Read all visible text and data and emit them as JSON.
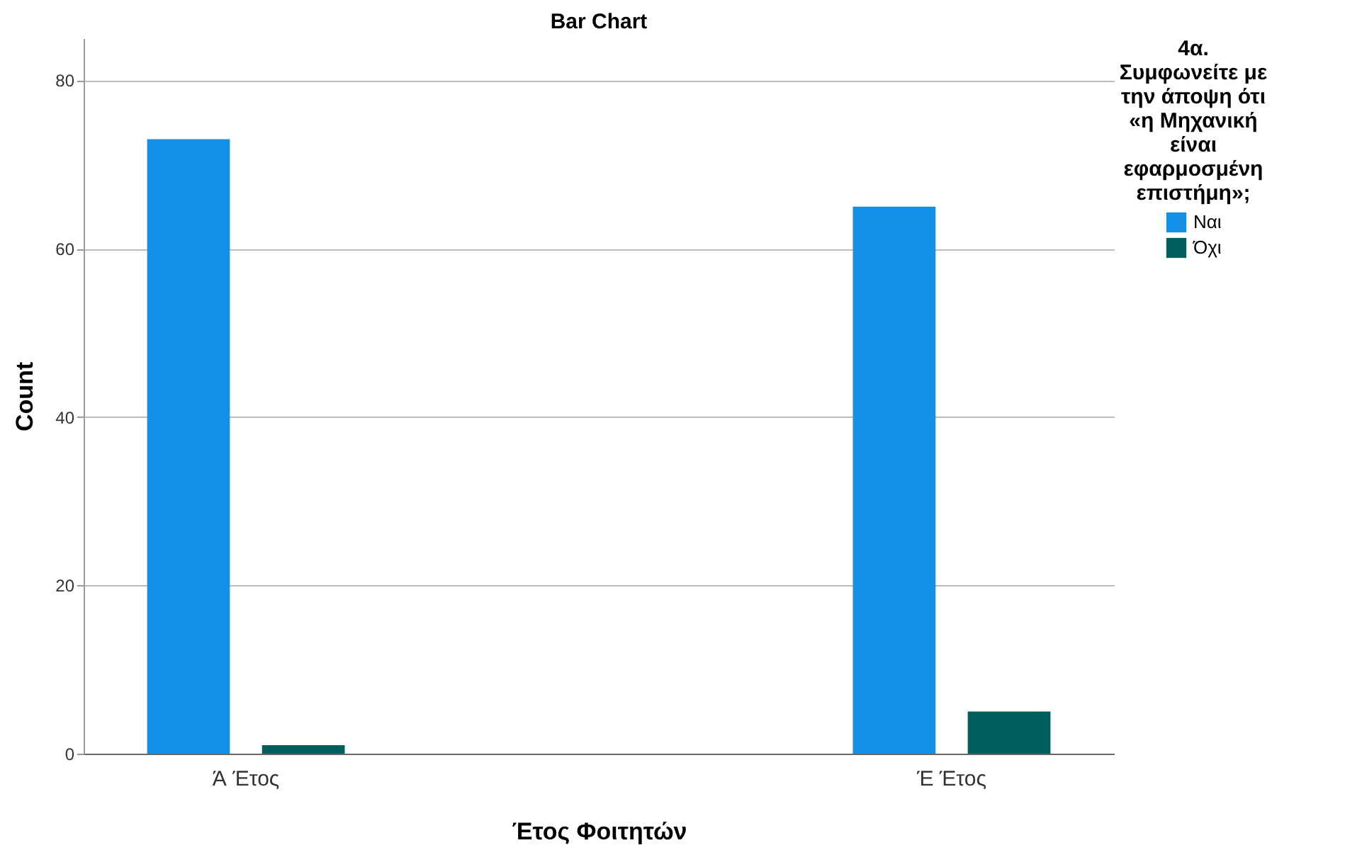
{
  "chart_data": {
    "type": "bar",
    "title": "Bar Chart",
    "xlabel": "Έτος Φοιτητών",
    "ylabel": "Count",
    "legend_title": "4α. Συμφωνείτε με την άποψη ότι «η Μηχανική είναι εφαρμοσμένη επιστήμη»;",
    "categories": [
      "Ά Έτος",
      "Έ Έτος"
    ],
    "series": [
      {
        "name": "Ναι",
        "color": "#1490e6",
        "values": [
          73,
          65
        ]
      },
      {
        "name": "Όχι",
        "color": "#005e5c",
        "values": [
          1,
          5
        ]
      }
    ],
    "ylim": [
      0,
      85
    ],
    "yticks": [
      0,
      20,
      40,
      60,
      80
    ],
    "grid": "y",
    "legend": "top right"
  }
}
